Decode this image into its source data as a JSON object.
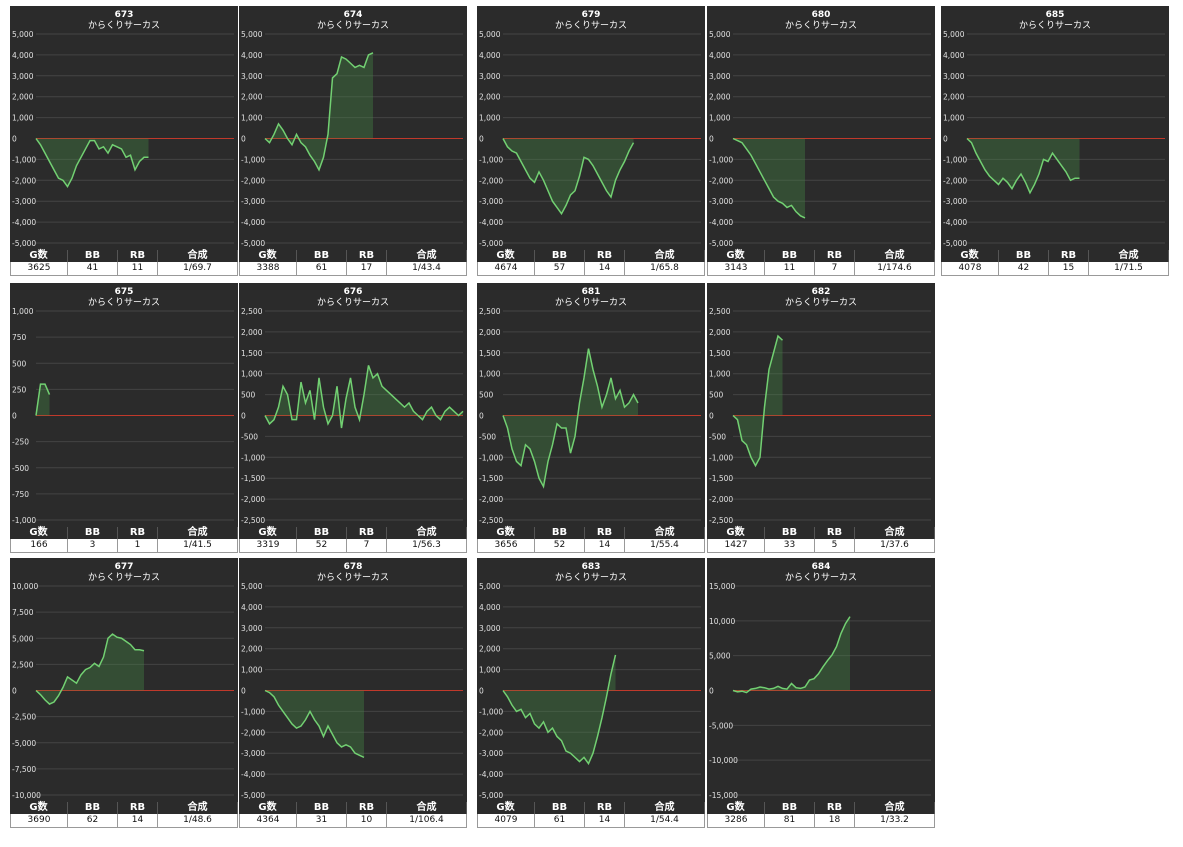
{
  "chart_data": [
    {
      "type": "line",
      "title": "673",
      "subtitle": "からくりサーカス",
      "values": [
        0,
        -300,
        -700,
        -1100,
        -1500,
        -1900,
        -2000,
        -2300,
        -1900,
        -1300,
        -900,
        -500,
        -100,
        -100,
        -500,
        -400,
        -700,
        -300,
        -400,
        -500,
        -900,
        -800,
        -1500,
        -1100,
        -900,
        -900
      ],
      "ylim": [
        -5000,
        5000
      ],
      "yticks": [
        {
          "value": 5000,
          "label": "5,000"
        },
        {
          "value": 4000,
          "label": "4,000"
        },
        {
          "value": 3000,
          "label": "3,000"
        },
        {
          "value": 2000,
          "label": "2,000"
        },
        {
          "value": 1000,
          "label": "1,000"
        },
        0,
        {
          "value": -1000,
          "label": "-1,000"
        },
        {
          "value": -2000,
          "label": "-2,000"
        },
        {
          "value": -3000,
          "label": "-3,000"
        },
        {
          "value": -4000,
          "label": "-4,000"
        },
        {
          "value": -5000,
          "label": "-5,000"
        }
      ],
      "table": {
        "columns": [
          "G数",
          "BB",
          "RB",
          "合成"
        ],
        "row": [
          3625,
          41,
          11,
          "1/69.7"
        ]
      }
    },
    {
      "type": "line",
      "title": "674",
      "subtitle": "からくりサーカス",
      "values": [
        0,
        -200,
        200,
        700,
        400,
        0,
        -300,
        200,
        -200,
        -400,
        -800,
        -1100,
        -1500,
        -900,
        200,
        2900,
        3100,
        3900,
        3800,
        3600,
        3400,
        3500,
        3400,
        4000,
        4100
      ],
      "ylim": [
        -5000,
        5000
      ],
      "yticks": [
        {
          "value": 5000,
          "label": "5,000"
        },
        {
          "value": 4000,
          "label": "4,000"
        },
        {
          "value": 3000,
          "label": "3,000"
        },
        {
          "value": 2000,
          "label": "2,000"
        },
        {
          "value": 1000,
          "label": "1,000"
        },
        0,
        {
          "value": -1000,
          "label": "-1,000"
        },
        {
          "value": -2000,
          "label": "-2,000"
        },
        {
          "value": -3000,
          "label": "-3,000"
        },
        {
          "value": -4000,
          "label": "-4,000"
        },
        {
          "value": -5000,
          "label": "-5,000"
        }
      ],
      "table": {
        "columns": [
          "G数",
          "BB",
          "RB",
          "合成"
        ],
        "row": [
          3388,
          61,
          17,
          "1/43.4"
        ]
      }
    },
    {
      "type": "line",
      "title": "679",
      "subtitle": "からくりサーカス",
      "values": [
        0,
        -400,
        -600,
        -700,
        -1100,
        -1500,
        -1900,
        -2100,
        -1600,
        -2000,
        -2500,
        -3000,
        -3300,
        -3600,
        -3200,
        -2700,
        -2500,
        -1800,
        -900,
        -1000,
        -1300,
        -1700,
        -2100,
        -2500,
        -2800,
        -2000,
        -1500,
        -1100,
        -600,
        -200
      ],
      "ylim": [
        -5000,
        5000
      ],
      "yticks": [
        {
          "value": 5000,
          "label": "5,000"
        },
        {
          "value": 4000,
          "label": "4,000"
        },
        {
          "value": 3000,
          "label": "3,000"
        },
        {
          "value": 2000,
          "label": "2,000"
        },
        {
          "value": 1000,
          "label": "1,000"
        },
        0,
        {
          "value": -1000,
          "label": "-1,000"
        },
        {
          "value": -2000,
          "label": "-2,000"
        },
        {
          "value": -3000,
          "label": "-3,000"
        },
        {
          "value": -4000,
          "label": "-4,000"
        },
        {
          "value": -5000,
          "label": "-5,000"
        }
      ],
      "table": {
        "columns": [
          "G数",
          "BB",
          "RB",
          "合成"
        ],
        "row": [
          4674,
          57,
          14,
          "1/65.8"
        ]
      }
    },
    {
      "type": "line",
      "title": "680",
      "subtitle": "からくりサーカス",
      "values": [
        0,
        -100,
        -200,
        -500,
        -800,
        -1200,
        -1600,
        -2000,
        -2400,
        -2800,
        -3000,
        -3100,
        -3300,
        -3200,
        -3500,
        -3700,
        -3800
      ],
      "ylim": [
        -5000,
        5000
      ],
      "yticks": [
        {
          "value": 5000,
          "label": "5,000"
        },
        {
          "value": 4000,
          "label": "4,000"
        },
        {
          "value": 3000,
          "label": "3,000"
        },
        {
          "value": 2000,
          "label": "2,000"
        },
        {
          "value": 1000,
          "label": "1,000"
        },
        0,
        {
          "value": -1000,
          "label": "-1,000"
        },
        {
          "value": -2000,
          "label": "-2,000"
        },
        {
          "value": -3000,
          "label": "-3,000"
        },
        {
          "value": -4000,
          "label": "-4,000"
        },
        {
          "value": -5000,
          "label": "-5,000"
        }
      ],
      "table": {
        "columns": [
          "G数",
          "BB",
          "RB",
          "合成"
        ],
        "row": [
          3143,
          11,
          7,
          "1/174.6"
        ]
      }
    },
    {
      "type": "line",
      "title": "685",
      "subtitle": "からくりサーカス",
      "values": [
        0,
        -200,
        -700,
        -1100,
        -1500,
        -1800,
        -2000,
        -2200,
        -1900,
        -2100,
        -2400,
        -2000,
        -1700,
        -2100,
        -2600,
        -2200,
        -1700,
        -1000,
        -1100,
        -700,
        -1000,
        -1300,
        -1600,
        -2000,
        -1900,
        -1900
      ],
      "ylim": [
        -5000,
        5000
      ],
      "yticks": [
        {
          "value": 5000,
          "label": "5,000"
        },
        {
          "value": 4000,
          "label": "4,000"
        },
        {
          "value": 3000,
          "label": "3,000"
        },
        {
          "value": 2000,
          "label": "2,000"
        },
        {
          "value": 1000,
          "label": "1,000"
        },
        0,
        {
          "value": -1000,
          "label": "-1,000"
        },
        {
          "value": -2000,
          "label": "-2,000"
        },
        {
          "value": -3000,
          "label": "-3,000"
        },
        {
          "value": -4000,
          "label": "-4,000"
        },
        {
          "value": -5000,
          "label": "-5,000"
        }
      ],
      "table": {
        "columns": [
          "G数",
          "BB",
          "RB",
          "合成"
        ],
        "row": [
          4078,
          42,
          15,
          "1/71.5"
        ]
      }
    },
    {
      "type": "line",
      "title": "675",
      "subtitle": "からくりサーカス",
      "values": [
        0,
        300,
        300,
        200
      ],
      "ylim": [
        -1000,
        1000
      ],
      "yticks": [
        {
          "value": 1000,
          "label": "1,000"
        },
        750,
        500,
        250,
        0,
        -250,
        -500,
        -750,
        {
          "value": -1000,
          "label": "-1,000"
        }
      ],
      "table": {
        "columns": [
          "G数",
          "BB",
          "RB",
          "合成"
        ],
        "row": [
          166,
          3,
          1,
          "1/41.5"
        ]
      }
    },
    {
      "type": "line",
      "title": "676",
      "subtitle": "からくりサーカス",
      "values": [
        0,
        -200,
        -100,
        200,
        700,
        500,
        -100,
        -100,
        800,
        300,
        600,
        -100,
        900,
        200,
        -200,
        0,
        700,
        -300,
        400,
        900,
        200,
        -100,
        500,
        1200,
        900,
        1000,
        700,
        600,
        500,
        400,
        300,
        200,
        300,
        100,
        0,
        -100,
        100,
        200,
        0,
        -100,
        100,
        200,
        100,
        0,
        100
      ],
      "ylim": [
        -2500,
        2500
      ],
      "yticks": [
        {
          "value": 2500,
          "label": "2,500"
        },
        {
          "value": 2000,
          "label": "2,000"
        },
        {
          "value": 1500,
          "label": "1,500"
        },
        {
          "value": 1000,
          "label": "1,000"
        },
        500,
        0,
        -500,
        {
          "value": -1000,
          "label": "-1,000"
        },
        {
          "value": -1500,
          "label": "-1,500"
        },
        {
          "value": -2000,
          "label": "-2,000"
        },
        {
          "value": -2500,
          "label": "-2,500"
        }
      ],
      "table": {
        "columns": [
          "G数",
          "BB",
          "RB",
          "合成"
        ],
        "row": [
          3319,
          52,
          7,
          "1/56.3"
        ]
      }
    },
    {
      "type": "line",
      "title": "681",
      "subtitle": "からくりサーカス",
      "values": [
        0,
        -300,
        -800,
        -1100,
        -1200,
        -700,
        -800,
        -1100,
        -1500,
        -1700,
        -1100,
        -700,
        -200,
        -300,
        -300,
        -900,
        -500,
        300,
        900,
        1600,
        1100,
        700,
        200,
        500,
        900,
        400,
        600,
        200,
        300,
        500,
        300
      ],
      "ylim": [
        -2500,
        2500
      ],
      "yticks": [
        {
          "value": 2500,
          "label": "2,500"
        },
        {
          "value": 2000,
          "label": "2,000"
        },
        {
          "value": 1500,
          "label": "1,500"
        },
        {
          "value": 1000,
          "label": "1,000"
        },
        500,
        0,
        -500,
        {
          "value": -1000,
          "label": "-1,000"
        },
        {
          "value": -1500,
          "label": "-1,500"
        },
        {
          "value": -2000,
          "label": "-2,000"
        },
        {
          "value": -2500,
          "label": "-2,500"
        }
      ],
      "table": {
        "columns": [
          "G数",
          "BB",
          "RB",
          "合成"
        ],
        "row": [
          3656,
          52,
          14,
          "1/55.4"
        ]
      }
    },
    {
      "type": "line",
      "title": "682",
      "subtitle": "からくりサーカス",
      "values": [
        0,
        -100,
        -600,
        -700,
        -1000,
        -1200,
        -1000,
        200,
        1100,
        1500,
        1900,
        1800
      ],
      "ylim": [
        -2500,
        2500
      ],
      "yticks": [
        {
          "value": 2500,
          "label": "2,500"
        },
        {
          "value": 2000,
          "label": "2,000"
        },
        {
          "value": 1500,
          "label": "1,500"
        },
        {
          "value": 1000,
          "label": "1,000"
        },
        500,
        0,
        -500,
        {
          "value": -1000,
          "label": "-1,000"
        },
        {
          "value": -1500,
          "label": "-1,500"
        },
        {
          "value": -2000,
          "label": "-2,000"
        },
        {
          "value": -2500,
          "label": "-2,500"
        }
      ],
      "table": {
        "columns": [
          "G数",
          "BB",
          "RB",
          "合成"
        ],
        "row": [
          1427,
          33,
          5,
          "1/37.6"
        ]
      }
    },
    {
      "type": "line",
      "title": "677",
      "subtitle": "からくりサーカス",
      "values": [
        0,
        -400,
        -900,
        -1300,
        -1100,
        -500,
        300,
        1300,
        1000,
        700,
        1500,
        2000,
        2200,
        2600,
        2300,
        3200,
        5000,
        5400,
        5100,
        5000,
        4700,
        4400,
        3900,
        3900,
        3800
      ],
      "ylim": [
        -10000,
        10000
      ],
      "yticks": [
        {
          "value": 10000,
          "label": "10,000"
        },
        {
          "value": 7500,
          "label": "7,500"
        },
        {
          "value": 5000,
          "label": "5,000"
        },
        {
          "value": 2500,
          "label": "2,500"
        },
        0,
        {
          "value": -2500,
          "label": "-2,500"
        },
        {
          "value": -5000,
          "label": "-5,000"
        },
        {
          "value": -7500,
          "label": "-7,500"
        },
        {
          "value": -10000,
          "label": "-10,000"
        }
      ],
      "table": {
        "columns": [
          "G数",
          "BB",
          "RB",
          "合成"
        ],
        "row": [
          3690,
          62,
          14,
          "1/48.6"
        ]
      }
    },
    {
      "type": "line",
      "title": "678",
      "subtitle": "からくりサーカス",
      "values": [
        0,
        -100,
        -300,
        -700,
        -1000,
        -1300,
        -1600,
        -1800,
        -1700,
        -1400,
        -1000,
        -1400,
        -1700,
        -2200,
        -1700,
        -2100,
        -2500,
        -2700,
        -2600,
        -2700,
        -3000,
        -3100,
        -3200
      ],
      "ylim": [
        -5000,
        5000
      ],
      "yticks": [
        {
          "value": 5000,
          "label": "5,000"
        },
        {
          "value": 4000,
          "label": "4,000"
        },
        {
          "value": 3000,
          "label": "3,000"
        },
        {
          "value": 2000,
          "label": "2,000"
        },
        {
          "value": 1000,
          "label": "1,000"
        },
        0,
        {
          "value": -1000,
          "label": "-1,000"
        },
        {
          "value": -2000,
          "label": "-2,000"
        },
        {
          "value": -3000,
          "label": "-3,000"
        },
        {
          "value": -4000,
          "label": "-4,000"
        },
        {
          "value": -5000,
          "label": "-5,000"
        }
      ],
      "table": {
        "columns": [
          "G数",
          "BB",
          "RB",
          "合成"
        ],
        "row": [
          4364,
          31,
          10,
          "1/106.4"
        ]
      }
    },
    {
      "type": "line",
      "title": "683",
      "subtitle": "からくりサーカス",
      "values": [
        0,
        -300,
        -700,
        -1000,
        -900,
        -1300,
        -1100,
        -1600,
        -1800,
        -1500,
        -2000,
        -1800,
        -2200,
        -2400,
        -2900,
        -3000,
        -3200,
        -3400,
        -3200,
        -3500,
        -3000,
        -2200,
        -1300,
        -300,
        800,
        1700
      ],
      "ylim": [
        -5000,
        5000
      ],
      "yticks": [
        {
          "value": 5000,
          "label": "5,000"
        },
        {
          "value": 4000,
          "label": "4,000"
        },
        {
          "value": 3000,
          "label": "3,000"
        },
        {
          "value": 2000,
          "label": "2,000"
        },
        {
          "value": 1000,
          "label": "1,000"
        },
        0,
        {
          "value": -1000,
          "label": "-1,000"
        },
        {
          "value": -2000,
          "label": "-2,000"
        },
        {
          "value": -3000,
          "label": "-3,000"
        },
        {
          "value": -4000,
          "label": "-4,000"
        },
        {
          "value": -5000,
          "label": "-5,000"
        }
      ],
      "table": {
        "columns": [
          "G数",
          "BB",
          "RB",
          "合成"
        ],
        "row": [
          4079,
          61,
          14,
          "1/54.4"
        ]
      }
    },
    {
      "type": "line",
      "title": "684",
      "subtitle": "からくりサーカス",
      "values": [
        0,
        -200,
        -100,
        -300,
        200,
        300,
        500,
        400,
        200,
        300,
        600,
        300,
        200,
        1000,
        400,
        300,
        500,
        1500,
        1700,
        2400,
        3400,
        4300,
        5100,
        6300,
        8200,
        9600,
        10600
      ],
      "ylim": [
        -15000,
        15000
      ],
      "yticks": [
        {
          "value": 15000,
          "label": "15,000"
        },
        {
          "value": 10000,
          "label": "10,000"
        },
        {
          "value": 5000,
          "label": "5,000"
        },
        0,
        {
          "value": -5000,
          "label": "-5,000"
        },
        {
          "value": -10000,
          "label": "-10,000"
        },
        {
          "value": -15000,
          "label": "-15,000"
        }
      ],
      "table": {
        "columns": [
          "G数",
          "BB",
          "RB",
          "合成"
        ],
        "row": [
          3286,
          81,
          18,
          "1/33.2"
        ]
      }
    }
  ]
}
